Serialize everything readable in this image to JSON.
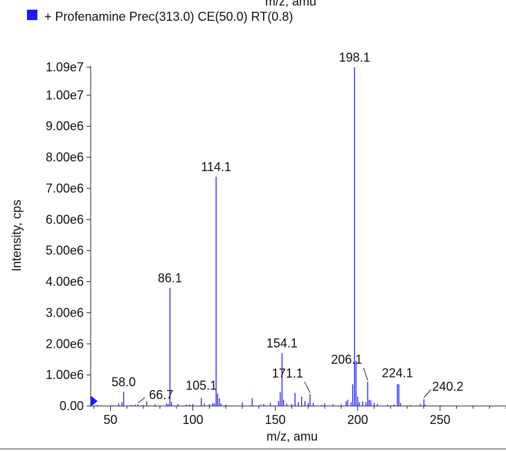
{
  "header_clip": "m/z, amu",
  "chart_data": {
    "type": "bar",
    "legend": {
      "label": "+ Profenamine Prec(313.0) CE(50.0) RT(0.8)",
      "color": "#1a1aff",
      "placement": "top-left"
    },
    "xlabel": "m/z, amu",
    "ylabel": "Intensity, cps",
    "xlim": [
      38,
      290
    ],
    "ylim": [
      0,
      10900000
    ],
    "xticks": [
      50,
      100,
      150,
      200,
      250
    ],
    "yticks": [
      {
        "value": 0,
        "label": "0.00"
      },
      {
        "value": 1000000,
        "label": "1.00e6"
      },
      {
        "value": 2000000,
        "label": "2.00e6"
      },
      {
        "value": 3000000,
        "label": "3.00e6"
      },
      {
        "value": 4000000,
        "label": "4.00e6"
      },
      {
        "value": 5000000,
        "label": "5.00e6"
      },
      {
        "value": 6000000,
        "label": "6.00e6"
      },
      {
        "value": 7000000,
        "label": "7.00e6"
      },
      {
        "value": 8000000,
        "label": "8.00e6"
      },
      {
        "value": 9000000,
        "label": "9.00e6"
      },
      {
        "value": 10000000,
        "label": "1.00e7"
      },
      {
        "value": 10900000,
        "label": "1.09e7"
      }
    ],
    "bar_color": "#1a1aff",
    "peaks": [
      {
        "x": 42,
        "y": 30000
      },
      {
        "x": 44,
        "y": 20000
      },
      {
        "x": 51,
        "y": 30000
      },
      {
        "x": 55,
        "y": 80000
      },
      {
        "x": 57,
        "y": 120000
      },
      {
        "x": 58.0,
        "y": 460000
      },
      {
        "x": 63,
        "y": 30000
      },
      {
        "x": 65,
        "y": 40000
      },
      {
        "x": 66.7,
        "y": 50000
      },
      {
        "x": 70,
        "y": 30000
      },
      {
        "x": 72,
        "y": 150000
      },
      {
        "x": 77,
        "y": 50000
      },
      {
        "x": 84,
        "y": 80000
      },
      {
        "x": 85,
        "y": 60000
      },
      {
        "x": 86.1,
        "y": 3800000
      },
      {
        "x": 87,
        "y": 120000
      },
      {
        "x": 91,
        "y": 60000
      },
      {
        "x": 96,
        "y": 40000
      },
      {
        "x": 98,
        "y": 50000
      },
      {
        "x": 100,
        "y": 60000
      },
      {
        "x": 105.1,
        "y": 260000
      },
      {
        "x": 107,
        "y": 80000
      },
      {
        "x": 110,
        "y": 60000
      },
      {
        "x": 112,
        "y": 100000
      },
      {
        "x": 113,
        "y": 80000
      },
      {
        "x": 114.1,
        "y": 7380000
      },
      {
        "x": 115,
        "y": 400000
      },
      {
        "x": 116,
        "y": 250000
      },
      {
        "x": 117,
        "y": 80000
      },
      {
        "x": 120,
        "y": 40000
      },
      {
        "x": 130,
        "y": 120000
      },
      {
        "x": 136,
        "y": 250000
      },
      {
        "x": 141,
        "y": 40000
      },
      {
        "x": 143,
        "y": 60000
      },
      {
        "x": 147,
        "y": 100000
      },
      {
        "x": 152,
        "y": 160000
      },
      {
        "x": 153,
        "y": 450000
      },
      {
        "x": 154.1,
        "y": 1700000
      },
      {
        "x": 155,
        "y": 200000
      },
      {
        "x": 157,
        "y": 80000
      },
      {
        "x": 160,
        "y": 60000
      },
      {
        "x": 162,
        "y": 420000
      },
      {
        "x": 164,
        "y": 120000
      },
      {
        "x": 166,
        "y": 300000
      },
      {
        "x": 168,
        "y": 160000
      },
      {
        "x": 170,
        "y": 100000
      },
      {
        "x": 171.1,
        "y": 380000
      },
      {
        "x": 173,
        "y": 100000
      },
      {
        "x": 178,
        "y": 40000
      },
      {
        "x": 180,
        "y": 80000
      },
      {
        "x": 185,
        "y": 60000
      },
      {
        "x": 190,
        "y": 50000
      },
      {
        "x": 193,
        "y": 150000
      },
      {
        "x": 194,
        "y": 200000
      },
      {
        "x": 196,
        "y": 120000
      },
      {
        "x": 197,
        "y": 700000
      },
      {
        "x": 198.1,
        "y": 10900000
      },
      {
        "x": 199,
        "y": 1450000
      },
      {
        "x": 200,
        "y": 300000
      },
      {
        "x": 201,
        "y": 120000
      },
      {
        "x": 203,
        "y": 150000
      },
      {
        "x": 205,
        "y": 120000
      },
      {
        "x": 206.1,
        "y": 780000
      },
      {
        "x": 207,
        "y": 200000
      },
      {
        "x": 208,
        "y": 180000
      },
      {
        "x": 210,
        "y": 100000
      },
      {
        "x": 212,
        "y": 60000
      },
      {
        "x": 218,
        "y": 40000
      },
      {
        "x": 222,
        "y": 50000
      },
      {
        "x": 224.1,
        "y": 700000
      },
      {
        "x": 225,
        "y": 700000
      },
      {
        "x": 226,
        "y": 100000
      },
      {
        "x": 232,
        "y": 30000
      },
      {
        "x": 238,
        "y": 60000
      },
      {
        "x": 240.2,
        "y": 220000
      },
      {
        "x": 241,
        "y": 40000
      },
      {
        "x": 250,
        "y": 20000
      }
    ],
    "annotations": [
      {
        "label": "198.1",
        "x": 198.1,
        "y": 10900000,
        "leader": false
      },
      {
        "label": "114.1",
        "x": 114.1,
        "y": 7380000,
        "leader": false
      },
      {
        "label": "86.1",
        "x": 86.1,
        "y": 3800000,
        "leader": false
      },
      {
        "label": "154.1",
        "x": 154.1,
        "y": 1700000,
        "leader": false
      },
      {
        "label": "58.0",
        "x": 58.0,
        "y": 460000,
        "leader": false
      },
      {
        "label": "105.1",
        "x": 105.1,
        "y": 260000,
        "leader": false
      },
      {
        "label": "66.7",
        "x": 66.7,
        "y": 50000,
        "leader": true
      },
      {
        "label": "171.1",
        "x": 171.1,
        "y": 380000,
        "leader": true
      },
      {
        "label": "206.1",
        "x": 206.1,
        "y": 780000,
        "leader": true
      },
      {
        "label": "224.1",
        "x": 224.1,
        "y": 700000,
        "leader": false
      },
      {
        "label": "240.2",
        "x": 240.2,
        "y": 220000,
        "leader": true
      }
    ]
  }
}
